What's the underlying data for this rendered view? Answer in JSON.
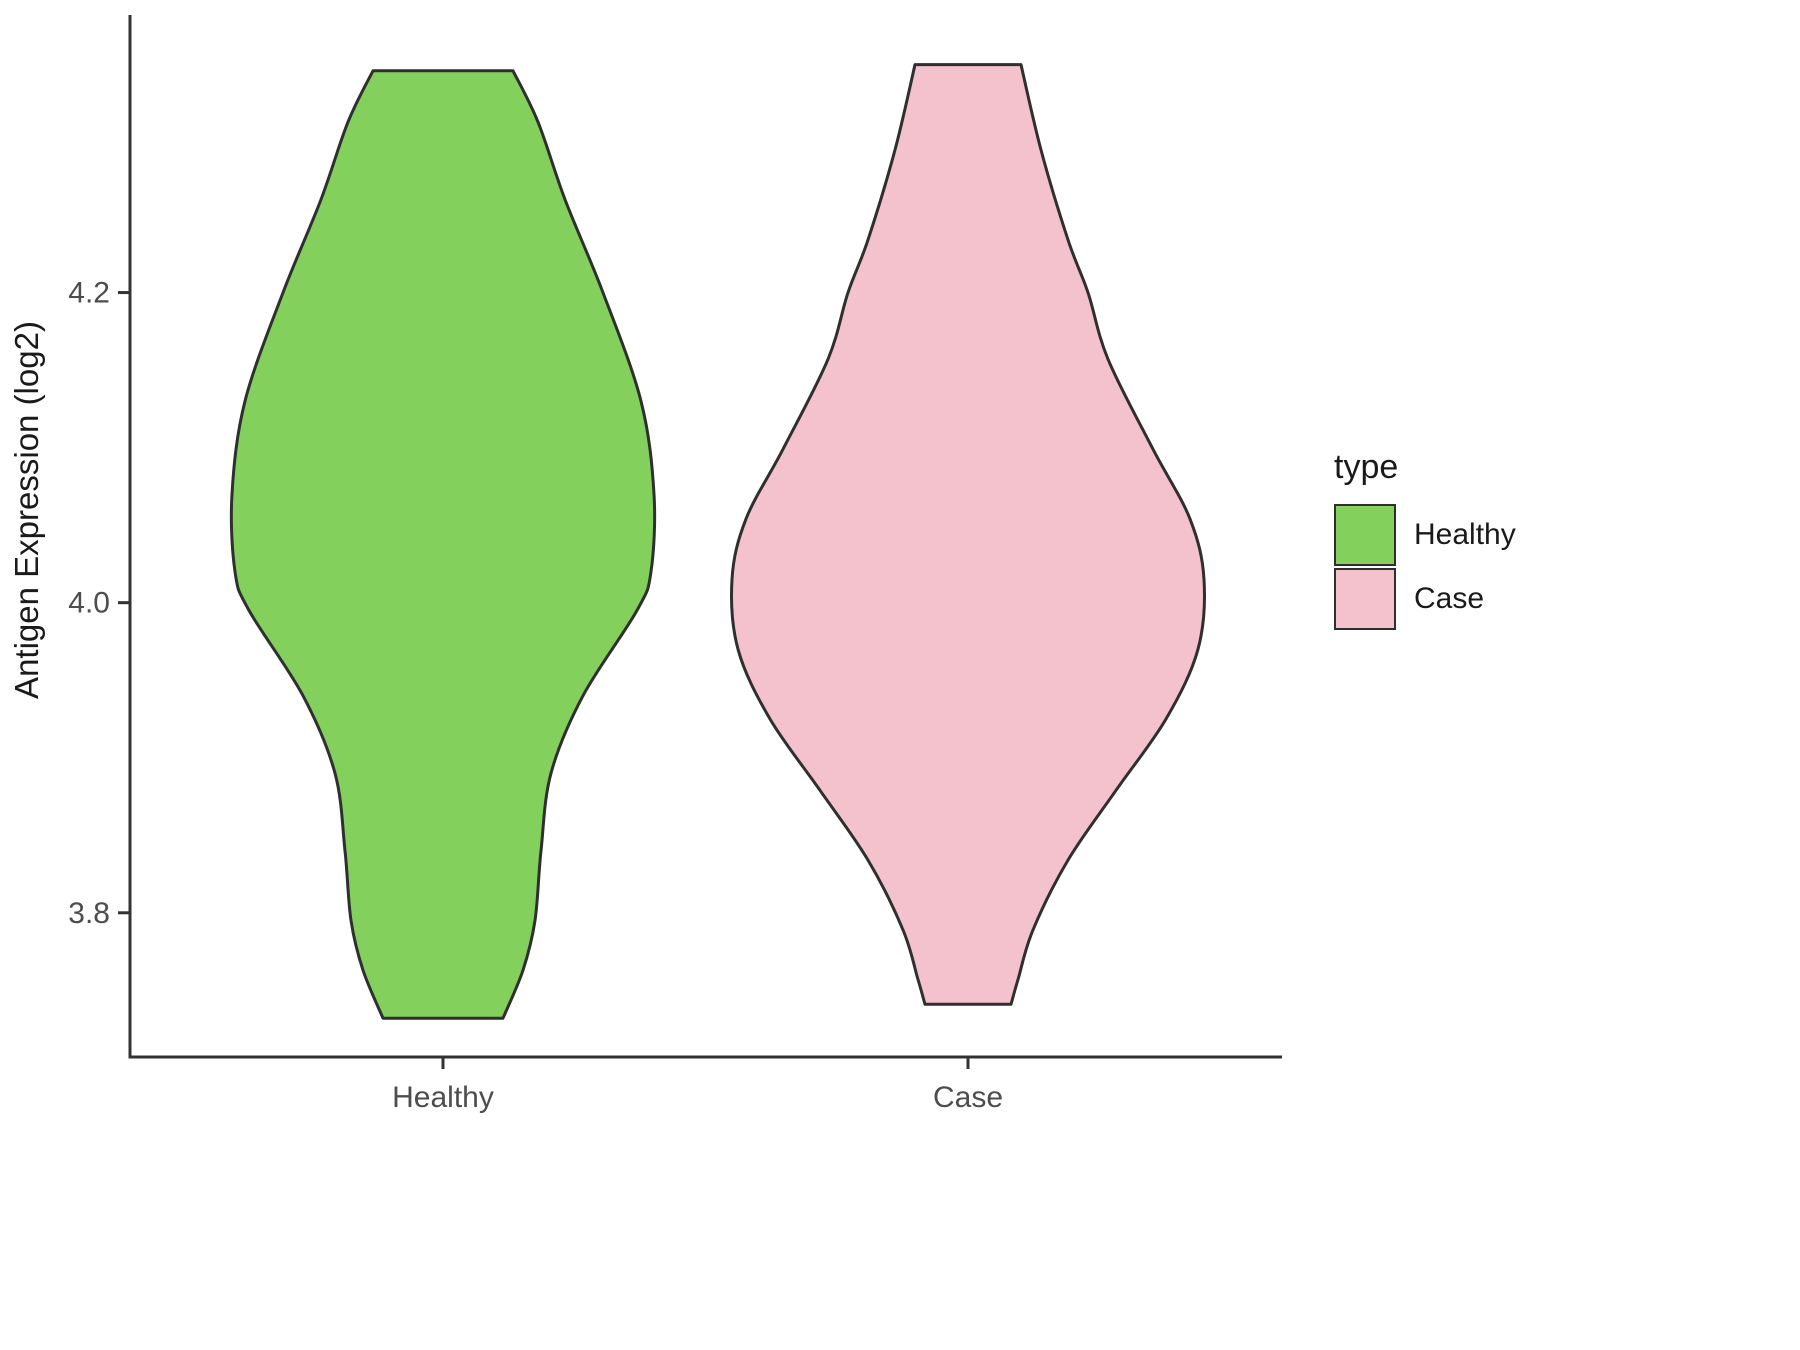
{
  "chart_data": {
    "type": "violin",
    "title": "",
    "xlabel": "",
    "ylabel": "Antigen Expression (log2)",
    "ylim": [
      3.707,
      4.379
    ],
    "grid": false,
    "legend_position": "right",
    "outline_color": "#2f2f2f",
    "axis_color": "#333333",
    "tick_label_color": "#4d4d4d",
    "y_ticks": [
      {
        "value": 3.8,
        "label": "3.8"
      },
      {
        "value": 4.0,
        "label": "4.0"
      },
      {
        "value": 4.2,
        "label": "4.2"
      }
    ],
    "categories": [
      {
        "name": "Healthy",
        "color": "#83d15c",
        "profile": [
          [
            4.343,
            70
          ],
          [
            4.31,
            95
          ],
          [
            4.26,
            122
          ],
          [
            4.2,
            160
          ],
          [
            4.13,
            198
          ],
          [
            4.07,
            211
          ],
          [
            4.02,
            208
          ],
          [
            3.995,
            194
          ],
          [
            3.94,
            140
          ],
          [
            3.89,
            108
          ],
          [
            3.84,
            98
          ],
          [
            3.795,
            92
          ],
          [
            3.763,
            80
          ],
          [
            3.732,
            60
          ]
        ]
      },
      {
        "name": "Case",
        "color": "#f4c2cd",
        "profile": [
          [
            4.347,
            53
          ],
          [
            4.292,
            73
          ],
          [
            4.234,
            100
          ],
          [
            4.2,
            120
          ],
          [
            4.157,
            140
          ],
          [
            4.099,
            185
          ],
          [
            4.054,
            222
          ],
          [
            4.015,
            236
          ],
          [
            3.97,
            230
          ],
          [
            3.925,
            198
          ],
          [
            3.879,
            148
          ],
          [
            3.834,
            100
          ],
          [
            3.789,
            65
          ],
          [
            3.757,
            50
          ],
          [
            3.741,
            43
          ]
        ]
      }
    ],
    "legend": {
      "title": "type",
      "entries": [
        {
          "label": "Healthy",
          "color": "#83d15c"
        },
        {
          "label": "Case",
          "color": "#f4c2cd"
        }
      ]
    }
  }
}
